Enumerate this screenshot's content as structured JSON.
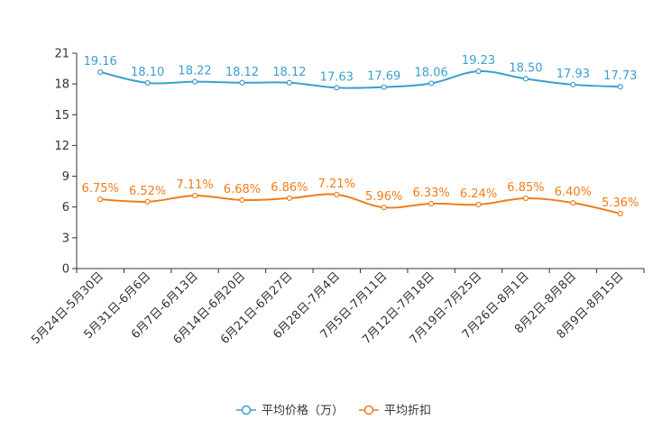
{
  "chart_data": {
    "type": "line",
    "categories": [
      "5月24日-5月30日",
      "5月31日-6月6日",
      "6月7日-6月13日",
      "6月14日-6月20日",
      "6月21日-6月27日",
      "6月28日-7月4日",
      "7月5日-7月11日",
      "7月12日-7月18日",
      "7月19日-7月25日",
      "7月26日-8月1日",
      "8月2日-8月8日",
      "8月9日-8月15日"
    ],
    "ylim": [
      0,
      21
    ],
    "yticks": [
      "0",
      "3",
      "6",
      "9",
      "12",
      "15",
      "18",
      "21"
    ],
    "series": [
      {
        "name": "平均价格（万）",
        "color": "#3b9fd0",
        "values": [
          19.16,
          18.1,
          18.22,
          18.12,
          18.12,
          17.63,
          17.69,
          18.06,
          19.23,
          18.5,
          17.93,
          17.73
        ],
        "labels": [
          "19.16",
          "18.10",
          "18.22",
          "18.12",
          "18.12",
          "17.63",
          "17.69",
          "18.06",
          "19.23",
          "18.50",
          "17.93",
          "17.73"
        ]
      },
      {
        "name": "平均折扣",
        "color": "#f07d1a",
        "values": [
          6.75,
          6.52,
          7.11,
          6.68,
          6.86,
          7.21,
          5.96,
          6.33,
          6.24,
          6.85,
          6.4,
          5.36
        ],
        "labels": [
          "6.75%",
          "6.52%",
          "7.11%",
          "6.68%",
          "6.86%",
          "7.21%",
          "5.96%",
          "6.33%",
          "6.24%",
          "6.85%",
          "6.40%",
          "5.36%"
        ]
      }
    ]
  }
}
